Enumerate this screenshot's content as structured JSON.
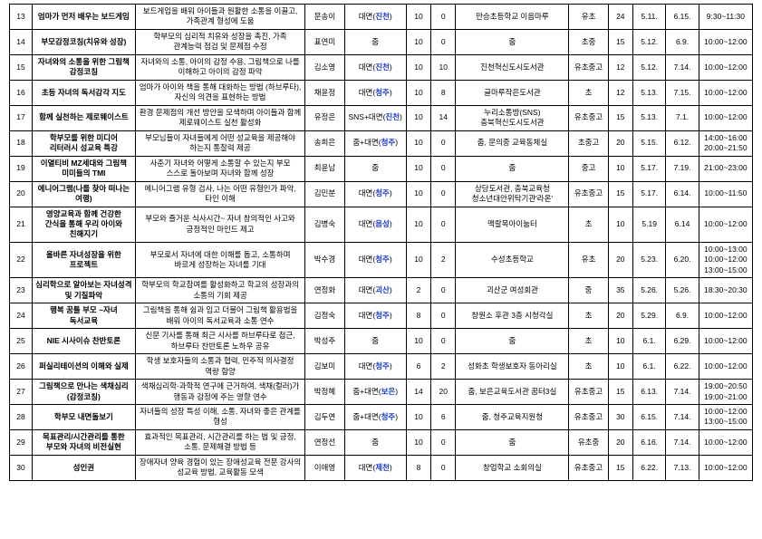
{
  "accent_color": "#1a3cd6",
  "rows": [
    {
      "num": "13",
      "title": "엄마가 먼저 배우는 보드게임",
      "desc": "보드게임을 배워 아이들과 원활한 소통을 이끌고, 가족관계 형성에 도움",
      "teacher": "문송이",
      "mode": {
        "plain": "대면(",
        "accent": "진천",
        "after": ")"
      },
      "cap": "10",
      "sessions": "0",
      "place": "만승초등학교 이음마루",
      "target": "유초",
      "people": "24",
      "start": "5.11.",
      "end": "6.15.",
      "time": "9:30~11:30"
    },
    {
      "num": "14",
      "title": "부모감정코칭(치유와 성장)",
      "desc": "학부모의 심리적 치유와 성장을 촉진, 가족 관계능력 점검 및 문제점 수정",
      "teacher": "표연미",
      "mode": {
        "plain": "줌"
      },
      "cap": "10",
      "sessions": "0",
      "place": "줌",
      "target": "초중",
      "people": "15",
      "start": "5.12.",
      "end": "6.9.",
      "time": "10:00~12:00"
    },
    {
      "num": "15",
      "title": "자녀와의 소통을 위한 그림책 감정코칭",
      "desc": "자녀와의 소통, 아이의 감정 수용, 그림책으로 나를 이해하고 아이의 감정 파악",
      "teacher": "김소영",
      "mode": {
        "plain": "대면(",
        "accent": "진천",
        "after": ")"
      },
      "cap": "10",
      "sessions": "10",
      "place": "진천혁신도시도서관",
      "target": "유초중고",
      "people": "12",
      "start": "5.12.",
      "end": "7.14.",
      "time": "10:00~12:00"
    },
    {
      "num": "16",
      "title": "초등 자녀의 독서감각 지도",
      "desc": "엄마가 아이와 책을 통해 대화하는 방법 (하브루타), 자신의 의견을 표현하는 방법",
      "teacher": "채윤정",
      "mode": {
        "plain": "대면(",
        "accent": "청주",
        "after": ")"
      },
      "cap": "10",
      "sessions": "8",
      "place": "글마루작은도서관",
      "target": "초",
      "people": "12",
      "start": "5.13.",
      "end": "7.15.",
      "time": "10:00~12:00"
    },
    {
      "num": "17",
      "title": "함께 실천하는 제로웨이스트",
      "desc": "환경 문제점의 개선 방안을 모색하며 아이들과 함께 제로웨이스트 실천 활성화",
      "teacher": "유정은",
      "mode": {
        "plain": "SNS+대면(",
        "accent": "진천",
        "after": ")"
      },
      "cap": "10",
      "sessions": "14",
      "place": "누리소통방(SNS) 충북혁신도시도서관",
      "target": "유초중고",
      "people": "15",
      "start": "5.13.",
      "end": "7.1.",
      "time": "10:00~12:00"
    },
    {
      "num": "18",
      "title": "학부모를 위한 미디어 리터러시 성교육 특강",
      "desc": "부모님들이 자녀들에게 어떤 성교육을 제공해야 하는지 통찰력 제공",
      "teacher": "송희은",
      "mode": {
        "plain": "줌+대면(",
        "accent": "청주",
        "after": ")"
      },
      "cap": "10",
      "sessions": "0",
      "place": "줌, 문의중 교육동체실",
      "target": "초중고",
      "people": "20",
      "start": "5.15.",
      "end": "6.12.",
      "time": "14:00~16:00\n20:00~21:50"
    },
    {
      "num": "19",
      "title": "이열티비 MZ세대와 그림책 미미들의 TMI",
      "desc": "사춘기 자녀와 어떻게 소통할 수 있는지 부모 스스로 돌아보며 자녀와 함께 성장",
      "teacher": "최윤남",
      "mode": {
        "plain": "줌"
      },
      "cap": "10",
      "sessions": "0",
      "place": "줌",
      "target": "중고",
      "people": "10",
      "start": "5.17.",
      "end": "7.19.",
      "time": "21:00~23:00"
    },
    {
      "num": "20",
      "title": "에니어그램(나를 찾아 떠나는 여행)",
      "desc": "에니어그램 유형 검사, 나는 어떤 유형인가 파악, 타인 이해",
      "teacher": "김민분",
      "mode": {
        "plain": "대면(",
        "accent": "청주",
        "after": ")"
      },
      "cap": "10",
      "sessions": "0",
      "place": "상당도서관, 충북교육청 청소년대안위탁기관'라온'",
      "target": "유초중고",
      "people": "15",
      "start": "5.17.",
      "end": "6.14.",
      "time": "10:00~11:50"
    },
    {
      "num": "21",
      "title": "영양교육과 함께 건강한 간식을 통해 우리 아이와 친해지기",
      "desc": "부모와 즐거운 식사시간~ 자녀 창의적인 사고와 긍정적인 마인드 제고",
      "teacher": "김병숙",
      "mode": {
        "plain": "대면(",
        "accent": "음성",
        "after": ")"
      },
      "cap": "10",
      "sessions": "0",
      "place": "맥랄목아이눔터",
      "target": "초",
      "people": "10",
      "start": "5.19",
      "end": "6.14",
      "time": "10:00~12:00"
    },
    {
      "num": "22",
      "title": "올바른 자녀성장을 위한 프로젝트",
      "desc": "부모로서 자녀에 대한 이해를 돕고, 소통하며 바르게 성장하는 자녀를 기대",
      "teacher": "박수경",
      "mode": {
        "plain": "대면(",
        "accent": "청주",
        "after": ")"
      },
      "cap": "10",
      "sessions": "2",
      "place": "수성초등학교",
      "target": "유초",
      "people": "20",
      "start": "5.23.",
      "end": "6.20.",
      "time": "10:00~13:00\n10:00~12:00\n13:00~15:00"
    },
    {
      "num": "23",
      "title": "심리학으로 알아보는 자녀성격 및 기질파악",
      "desc": "학부모의 학교참여를 활성화하고 학교의 성장과의 소통의 기회 제공",
      "teacher": "연정화",
      "mode": {
        "plain": "대면(",
        "accent": "괴산",
        "after": ")"
      },
      "cap": "2",
      "sessions": "0",
      "place": "괴산군 여성회관",
      "target": "중",
      "people": "35",
      "start": "5.26.",
      "end": "5.26.",
      "time": "18:30~20:30"
    },
    {
      "num": "24",
      "title": "행복 꿈틀 부모 ~자녀 독서교육",
      "desc": "그림책을 통해 쉼과 임고 더불어 그림책 활용법을 배워 아이의 독서교육과 소통 연수",
      "teacher": "김정숙",
      "mode": {
        "plain": "대면(",
        "accent": "청주",
        "after": ")"
      },
      "cap": "8",
      "sessions": "0",
      "place": "창원소 후관 3층 시청각실",
      "target": "초",
      "people": "20",
      "start": "5.29.",
      "end": "6.9.",
      "time": "10:00~12:00"
    },
    {
      "num": "25",
      "title": "NIE 시사이슈 찬반토론",
      "desc": "신문 기사를 통해 최근 시사를 하브루타로 접근, 하브루타 찬반토론 노하우 공유",
      "teacher": "박성주",
      "mode": {
        "plain": "줌"
      },
      "cap": "10",
      "sessions": "0",
      "place": "줌",
      "target": "초",
      "people": "10",
      "start": "6.1.",
      "end": "6.29.",
      "time": "10:00~12:00"
    },
    {
      "num": "26",
      "title": "퍼실리테이션의 이해와 실제",
      "desc": "학생 보호자들의 소통과 협력, 민주적 의사결정 역량 함양",
      "teacher": "김보미",
      "mode": {
        "plain": "대면(",
        "accent": "청주",
        "after": ")"
      },
      "cap": "6",
      "sessions": "2",
      "place": "성화초 학생보호자 동아리실",
      "target": "초",
      "people": "10",
      "start": "6.1.",
      "end": "6.22.",
      "time": "10:00~12:00"
    },
    {
      "num": "27",
      "title": "그림책으로 만나는 색채심리(감정코칭)",
      "desc": "색채심리학·과학적 연구에 근거하여, 색채(컬러)가 행동과 감정에 주는 영향 연수",
      "teacher": "박정혜",
      "mode": {
        "plain": "줌+대면(",
        "accent": "보은",
        "after": ")"
      },
      "cap": "14",
      "sessions": "20",
      "place": "줌, 보은교육도서관 꿈터3실",
      "target": "유초중고",
      "people": "15",
      "start": "6.13.",
      "end": "7.14.",
      "time": "19:00~20:50\n19:00~21:00"
    },
    {
      "num": "28",
      "title": "학부모 내면돌보기",
      "desc": "자녀들의 성장 특성 이해, 소통, 자녀와 좋은 관계를 형성",
      "teacher": "김두연",
      "mode": {
        "plain": "줌+대면(",
        "accent": "청주",
        "after": ")"
      },
      "cap": "10",
      "sessions": "6",
      "place": "줌, 청주교육지원청",
      "target": "유초중고",
      "people": "30",
      "start": "6.15.",
      "end": "7.14.",
      "time": "10:00~12:00\n13:00~15:00"
    },
    {
      "num": "29",
      "title": "목표관리/시간관리를 통한 부모와 자녀의 비전실현",
      "desc": "효과적인 목표관리, 시간관리를 하는 법 및 긍정, 소통, 문제해결 방법 등",
      "teacher": "연정선",
      "mode": {
        "plain": "줌"
      },
      "cap": "10",
      "sessions": "0",
      "place": "줌",
      "target": "유초중",
      "people": "20",
      "start": "6.16.",
      "end": "7.14.",
      "time": "10:00~12:00"
    },
    {
      "num": "30",
      "title": "성인권",
      "desc": "장애자녀 양육 경험이 있는 장애성교육 전문 강사의 성교육 방법, 교육활동 모색",
      "teacher": "이애영",
      "mode": {
        "plain": "대면(",
        "accent": "제천",
        "after": ")"
      },
      "cap": "8",
      "sessions": "0",
      "place": "창업학교 소회의실",
      "target": "유초중고",
      "people": "15",
      "start": "6.22.",
      "end": "7.13.",
      "time": "10:00~12:00"
    }
  ]
}
